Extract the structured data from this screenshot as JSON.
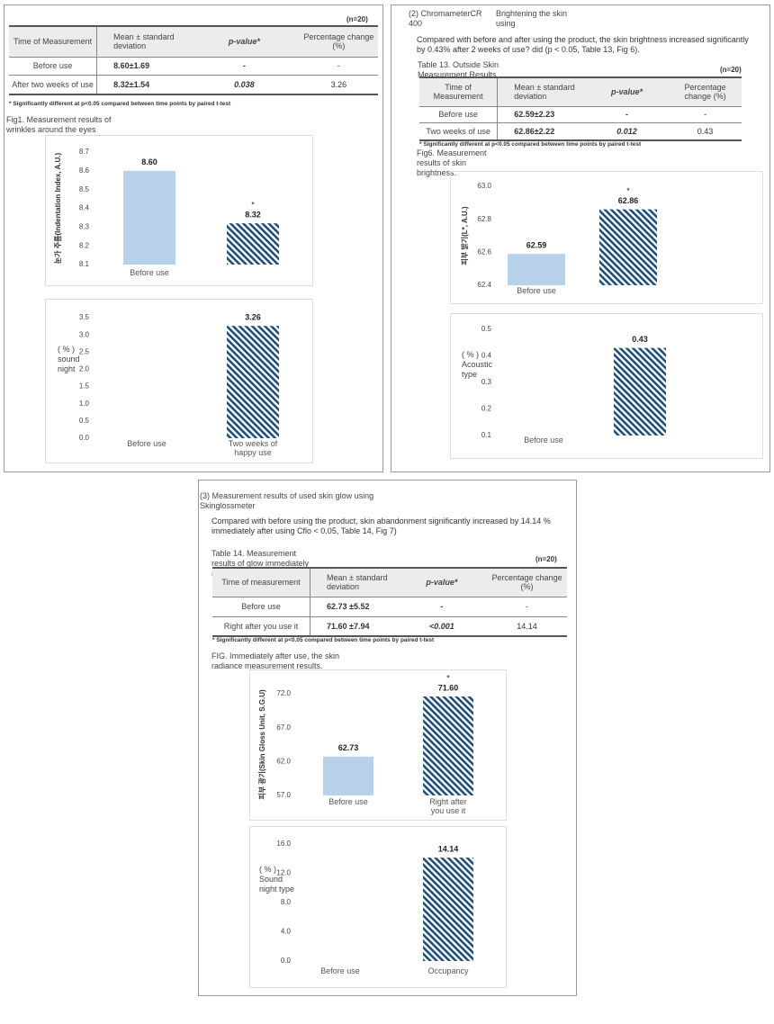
{
  "panels": [
    {
      "n": "(n=20)",
      "table": {
        "header": [
          "Time of Measurement",
          "Mean ± standard deviation",
          "p-value*",
          "Percentage change (%)"
        ],
        "rows": [
          [
            "Before use",
            "8.60±1.69",
            "-",
            "-"
          ],
          [
            "After two weeks of use",
            "8.32±1.54",
            "0.038",
            "3.26"
          ]
        ]
      },
      "footnote": "* Significantly different at p<0.05 compared between time points by paired t-test",
      "caption": "Fig1. Measurement results of wrinkles around the eyes"
    },
    {
      "heading": "(2) ChromameterCR 400",
      "subheading": "Brightening the skin using",
      "text": "Compared with before and after using the product, the skin brightness increased significantly by 0.43% after 2 weeks of use? did (p < 0.05, Table 13, Fig 6).",
      "table_title": "Table 13. Outside Skin Measurement Results",
      "n": "(n=20)",
      "table": {
        "header": [
          "Time of Measurement",
          "Mean ± standard deviation",
          "p-value*",
          "Percentage change (%)"
        ],
        "rows": [
          [
            "Before use",
            "62.59±2.23",
            "-",
            "-"
          ],
          [
            "Two weeks of use",
            "62.86±2.22",
            "0.012",
            "0.43"
          ]
        ]
      },
      "footnote": "* Significantly different at p<0.05 compared between time points by paired t-test",
      "caption": "Fig6. Measurement results of skin brightness."
    },
    {
      "heading": "(3) Measurement results of used skin glow using Skinglossmeter",
      "text": "Compared with before using the product, skin abandonment significantly increased by 14.14 % immediately after using Cflo < 0.05, Table 14, Fig 7)",
      "table_title": "Table 14. Measurement results of glow immediately after use",
      "n": "(n=20)",
      "table": {
        "header": [
          "Time of measurement",
          "Mean ± standard deviation",
          "p-value*",
          "Percentage change (%)"
        ],
        "rows": [
          [
            "Before use",
            "62.73 ±5.52",
            "-",
            "-"
          ],
          [
            "Right after you use it",
            "71.60 ±7.94",
            "<0.001",
            "14.14"
          ]
        ]
      },
      "footnote": "* Significantly different at p<0.05 compared between time points by paired t-test",
      "caption": "FIG. Immediately after use, the skin radiance measurement results."
    }
  ],
  "chart_data": [
    {
      "type": "bar",
      "ylabel": "눈가 주름(Indentation Index, A.U.)",
      "categories": [
        "Before use",
        null
      ],
      "values": [
        8.6,
        8.32
      ],
      "value_labels": [
        "8.60",
        "8.32"
      ],
      "annotations": [
        null,
        "*"
      ],
      "colors": [
        "#b8d1ea",
        "#1f4e79"
      ],
      "hatched": [
        false,
        true
      ],
      "ylim": [
        8.1,
        8.7
      ],
      "yticks": [
        8.1,
        8.2,
        8.3,
        8.4,
        8.5,
        8.6,
        8.7
      ],
      "grid": false
    },
    {
      "type": "bar",
      "ylabel": "( % ) sound night",
      "categories": [
        "Before use",
        "Two weeks of happy use"
      ],
      "values": [
        null,
        3.26
      ],
      "colors": [
        "#b8d1ea",
        "#1f4e79"
      ],
      "hatched": [
        false,
        true
      ],
      "ylim": [
        0,
        3.5
      ],
      "yticks": [
        {
          "value": 0,
          "label": "0.0"
        },
        0.5,
        {
          "value": 1,
          "label": "1.0"
        },
        1.5,
        {
          "value": 2,
          "label": "2.0"
        },
        2.5,
        {
          "value": 3,
          "label": "3.0"
        },
        3.5
      ],
      "grid": false
    },
    {
      "type": "bar",
      "ylabel": "피부 밝기(L*, A.U.)",
      "categories": [
        "Before use",
        null
      ],
      "values": [
        62.59,
        62.86
      ],
      "annotations": [
        null,
        "*"
      ],
      "colors": [
        "#b8d1ea",
        "#1f4e79"
      ],
      "hatched": [
        false,
        true
      ],
      "ylim": [
        62.4,
        63.0
      ],
      "yticks": [
        62.4,
        62.6,
        62.8,
        {
          "value": 63,
          "label": "63.0"
        }
      ],
      "grid": false
    },
    {
      "type": "bar",
      "ylabel": "( % ) Acoustic type",
      "categories": [
        "Before use",
        null
      ],
      "values": [
        null,
        0.43
      ],
      "colors": [
        "#b8d1ea",
        "#1f4e79"
      ],
      "hatched": [
        false,
        true
      ],
      "ylim": [
        0.1,
        0.5
      ],
      "yticks": [
        0.1,
        0.2,
        0.3,
        0.4,
        0.5
      ],
      "grid": false
    },
    {
      "type": "bar",
      "ylabel": "피부 광기(Skin Gloss Unit, S.G.U)",
      "categories": [
        "Before use",
        "Right after you use it"
      ],
      "values": [
        62.73,
        71.6
      ],
      "value_labels": [
        "62.73",
        "71.60"
      ],
      "annotations": [
        null,
        "*"
      ],
      "colors": [
        "#b8d1ea",
        "#1f4e79"
      ],
      "hatched": [
        false,
        true
      ],
      "ylim": [
        57,
        72
      ],
      "yticks": [
        {
          "value": 57,
          "label": "57.0"
        },
        {
          "value": 62,
          "label": "62.0"
        },
        {
          "value": 67,
          "label": "67.0"
        },
        {
          "value": 72,
          "label": "72.0"
        }
      ],
      "grid": false
    },
    {
      "type": "bar",
      "ylabel": "( % ) Sound night type",
      "categories": [
        "Before use",
        "Occupancy"
      ],
      "values": [
        null,
        14.14
      ],
      "colors": [
        "#b8d1ea",
        "#1f4e79"
      ],
      "hatched": [
        false,
        true
      ],
      "ylim": [
        0,
        16
      ],
      "yticks": [
        {
          "value": 0,
          "label": "0.0"
        },
        {
          "value": 4,
          "label": "4.0"
        },
        {
          "value": 8,
          "label": "8.0"
        },
        {
          "value": 12,
          "label": "12.0"
        },
        {
          "value": 16,
          "label": "16.0"
        }
      ],
      "grid": false
    }
  ]
}
